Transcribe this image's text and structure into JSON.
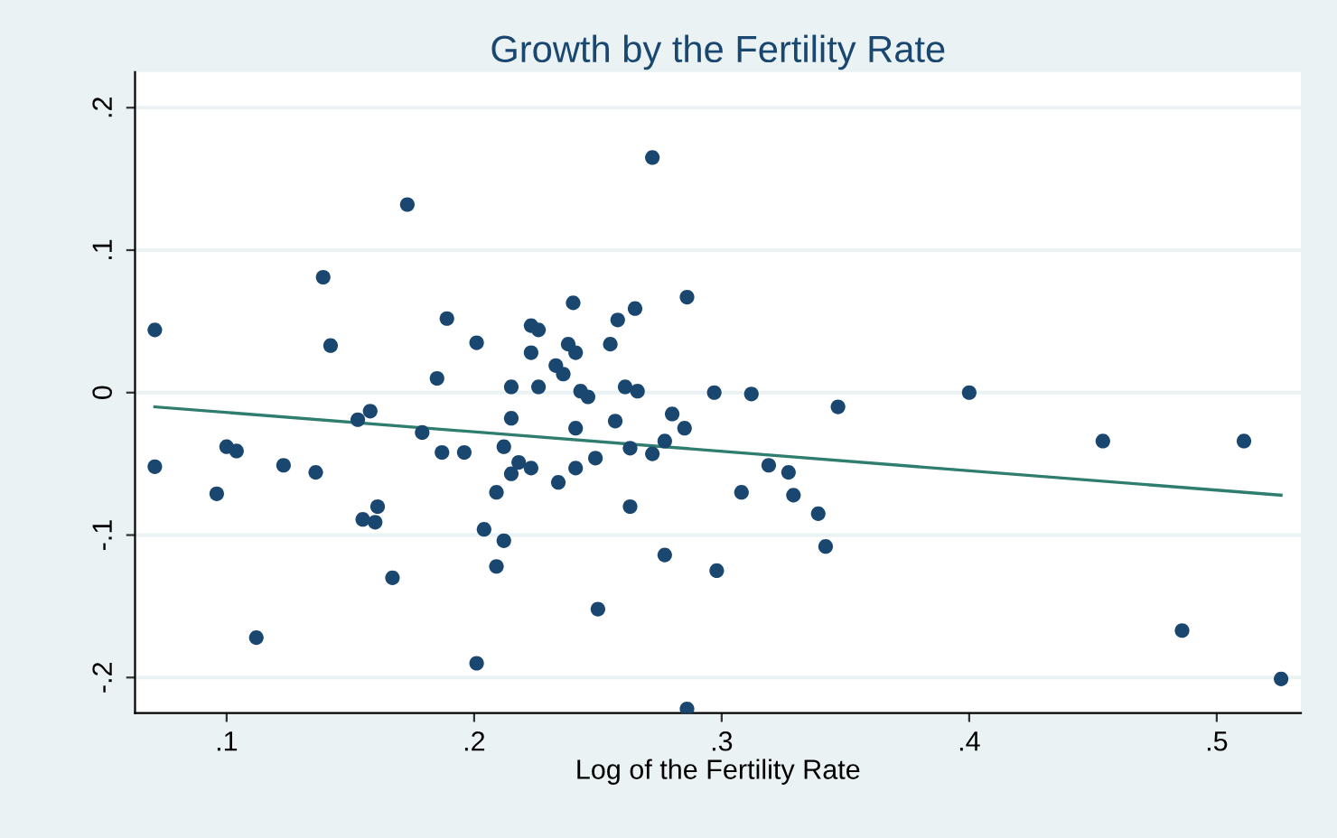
{
  "chart_data": {
    "type": "scatter",
    "title": "Growth by the Fertility Rate",
    "xlabel": "Log of the Fertility Rate",
    "xlim": [
      0.063,
      0.534
    ],
    "ylim": [
      -0.225,
      0.225
    ],
    "xticks": [
      {
        "value": 0.1,
        "label": ".1"
      },
      {
        "value": 0.2,
        "label": ".2"
      },
      {
        "value": 0.3,
        "label": ".3"
      },
      {
        "value": 0.4,
        "label": ".4"
      },
      {
        "value": 0.5,
        "label": ".5"
      }
    ],
    "yticks": [
      {
        "value": -0.2,
        "label": "-.2"
      },
      {
        "value": -0.1,
        "label": "-.1"
      },
      0,
      {
        "value": 0.1,
        "label": ".1"
      },
      {
        "value": 0.2,
        "label": ".2"
      }
    ],
    "grid": "y",
    "marker": "circle",
    "legend": false,
    "series": [
      {
        "color": "#1a476f",
        "x": [
          0.071,
          0.071,
          0.096,
          0.1,
          0.104,
          0.112,
          0.123,
          0.136,
          0.139,
          0.142,
          0.153,
          0.158,
          0.155,
          0.16,
          0.161,
          0.167,
          0.173,
          0.179,
          0.185,
          0.187,
          0.189,
          0.196,
          0.201,
          0.204,
          0.201,
          0.272,
          0.209,
          0.212,
          0.209,
          0.212,
          0.215,
          0.215,
          0.215,
          0.218,
          0.223,
          0.223,
          0.226,
          0.223,
          0.226,
          0.234,
          0.233,
          0.236,
          0.24,
          0.238,
          0.241,
          0.243,
          0.246,
          0.241,
          0.241,
          0.249,
          0.25,
          0.255,
          0.258,
          0.265,
          0.261,
          0.266,
          0.257,
          0.263,
          0.263,
          0.272,
          0.277,
          0.28,
          0.285,
          0.286,
          0.277,
          0.286,
          0.297,
          0.298,
          0.312,
          0.308,
          0.319,
          0.327,
          0.329,
          0.339,
          0.342,
          0.347,
          0.4,
          0.454,
          0.511,
          0.486,
          0.526
        ],
        "values": [
          0.044,
          -0.052,
          -0.071,
          -0.038,
          -0.041,
          -0.172,
          -0.051,
          -0.056,
          0.081,
          0.033,
          -0.019,
          -0.013,
          -0.089,
          -0.091,
          -0.08,
          -0.13,
          0.132,
          -0.028,
          0.01,
          -0.042,
          0.052,
          -0.042,
          0.035,
          -0.096,
          -0.19,
          0.165,
          -0.07,
          -0.104,
          -0.122,
          -0.038,
          0.004,
          -0.018,
          -0.057,
          -0.049,
          -0.053,
          0.047,
          0.044,
          0.028,
          0.004,
          -0.063,
          0.019,
          0.013,
          0.063,
          0.034,
          0.028,
          0.001,
          -0.003,
          -0.025,
          -0.053,
          -0.046,
          -0.152,
          0.034,
          0.051,
          0.059,
          0.004,
          0.001,
          -0.02,
          -0.039,
          -0.08,
          -0.043,
          -0.034,
          -0.015,
          -0.025,
          0.067,
          -0.114,
          -0.222,
          0.0,
          -0.125,
          -0.001,
          -0.07,
          -0.051,
          -0.056,
          -0.072,
          -0.085,
          -0.108,
          -0.01,
          0.0,
          -0.034,
          -0.034,
          -0.167,
          -0.201
        ]
      },
      {
        "type": "line",
        "color": "#2e7d6e",
        "marker": "none",
        "line_style": "solid",
        "x": [
          0.071,
          0.526
        ],
        "values": [
          -0.01,
          -0.072
        ]
      }
    ]
  }
}
